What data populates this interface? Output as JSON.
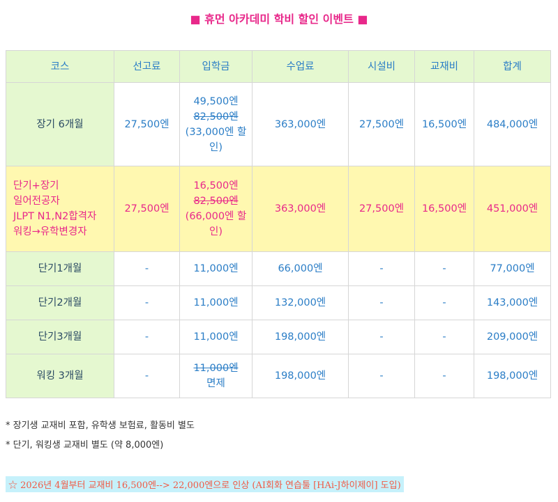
{
  "title": "■ 휴먼 아카데미 학비 할인 이벤트 ■",
  "table": {
    "headers": [
      "코스",
      "선고료",
      "입학금",
      "수업료",
      "시설비",
      "교재비",
      "합계"
    ],
    "rows": [
      {
        "course": "장기 6개월",
        "exam_fee": "27,500엔",
        "admission": {
          "price": "49,500엔",
          "original": "82,500엔",
          "discount": "(33,000엔 할인)"
        },
        "tuition": "363,000엔",
        "facility": "27,500엔",
        "materials": "16,500엔",
        "total": "484,000엔"
      },
      {
        "course_lines": [
          "단기+장기",
          "일어전공자",
          "JLPT N1,N2합격자",
          "워킹→유학변경자"
        ],
        "exam_fee": "27,500엔",
        "admission": {
          "price": "16,500엔",
          "original": "82,500엔",
          "discount": "(66,000엔 할인)"
        },
        "tuition": "363,000엔",
        "facility": "27,500엔",
        "materials": "16,500엔",
        "total": "451,000엔"
      },
      {
        "course": "단기1개월",
        "exam_fee": "-",
        "admission": "11,000엔",
        "tuition": "66,000엔",
        "facility": "-",
        "materials": "-",
        "total": "77,000엔"
      },
      {
        "course": "단기2개월",
        "exam_fee": "-",
        "admission": "11,000엔",
        "tuition": "132,000엔",
        "facility": "-",
        "materials": "-",
        "total": "143,000엔"
      },
      {
        "course": "단기3개월",
        "exam_fee": "-",
        "admission": "11,000엔",
        "tuition": "198,000엔",
        "facility": "-",
        "materials": "-",
        "total": "209,000엔"
      },
      {
        "course": "워킹 3개월",
        "exam_fee": "-",
        "admission": {
          "original": "11,000엔",
          "note": "면제"
        },
        "tuition": "198,000엔",
        "facility": "-",
        "materials": "-",
        "total": "198,000엔"
      }
    ]
  },
  "notes": [
    "* 장기생 교재비 포함, 유학생 보험료, 활동비 별도",
    "* 단기, 워킹생 교재비 별도 (약 8,000엔)"
  ],
  "notice": "☆ 2026년 4월부터 교재비 16,500엔--> 22,000엔으로 인상 (AI회화 연습툴 [HAi-J하이제이] 도입)",
  "colors": {
    "title": "#e8288a",
    "header_bg": "#e5f8d0",
    "highlight_bg": "#fff8b0",
    "value_text": "#2a7dc6",
    "notice_bg": "#c6f1fb",
    "notice_text": "#f05a45"
  }
}
